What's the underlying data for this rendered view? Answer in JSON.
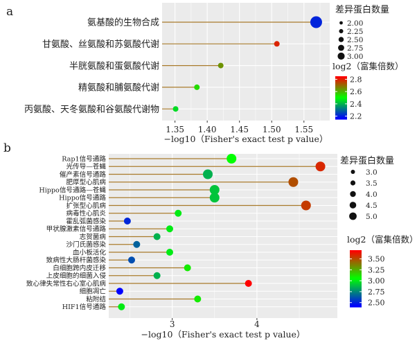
{
  "chart_data": [
    {
      "panel": "a",
      "type": "lollipop",
      "xlabel": "−log10（Fisher's exact test p value）",
      "xlim": [
        1.33,
        1.59
      ],
      "xticks": [
        "1.35",
        "1.40",
        "1.45",
        "1.50",
        "1.55"
      ],
      "xtick_values": [
        1.35,
        1.4,
        1.45,
        1.5,
        1.55
      ],
      "categories": [
        "氨基酸的生物合成",
        "甘氨酸、丝氨酸和苏氨酸代谢",
        "半胱氨酸和蛋氨酸代谢",
        "精氨酸和脯氨酸代谢",
        "丙氨酸、天冬氨酸和谷氨酸代谢物"
      ],
      "values": [
        1.569,
        1.508,
        1.421,
        1.384,
        1.351
      ],
      "counts": [
        3,
        2,
        2,
        2,
        2
      ],
      "log2_enrichment": [
        2.2,
        2.8,
        2.65,
        2.55,
        2.45
      ],
      "legend_size": {
        "title": "差异蛋白数量",
        "labels": [
          "2.00",
          "2.25",
          "2.50",
          "2.75",
          "3.00"
        ],
        "values": [
          2.0,
          2.25,
          2.5,
          2.75,
          3.0
        ]
      },
      "legend_color": {
        "title": "log2（富集倍数）",
        "labels": [
          "2.8",
          "2.6",
          "2.4",
          "2.2"
        ],
        "values": [
          2.8,
          2.6,
          2.4,
          2.2
        ],
        "range": [
          2.15,
          2.85
        ]
      },
      "grid": true,
      "legend_placement": "right"
    },
    {
      "panel": "b",
      "type": "lollipop",
      "xlabel": "−log10（Fisher's exact test p value）",
      "xlim": [
        2.25,
        4.95
      ],
      "xticks": [
        "3",
        "4"
      ],
      "xtick_values": [
        3,
        4
      ],
      "categories": [
        "Rap1信号通路",
        "光传导—苍蝇",
        "催产素信号通路",
        "肥厚型心肌病",
        "Hippo信号通路—苍蝇",
        "Hippo信号通路",
        "扩张型心肌病",
        "病毒性心肌炎",
        "霍乱弧菌感染",
        "甲状腺激素信号通路",
        "志贺菌病",
        "沙门氏菌感染",
        "血小板活化",
        "致病性大肠杆菌感染",
        "白细胞跨内皮迁移",
        "上皮细胞的细菌入侵",
        "致心律失常性右心室心肌病",
        "细胞凋亡",
        "粘附结",
        "HIF1信号通路"
      ],
      "values": [
        3.7,
        4.75,
        3.42,
        4.43,
        3.5,
        3.5,
        4.58,
        3.07,
        2.47,
        2.97,
        2.82,
        2.58,
        2.97,
        2.52,
        3.18,
        2.82,
        3.9,
        2.38,
        3.3,
        2.4
      ],
      "counts": [
        4,
        4,
        4,
        4,
        4,
        4,
        4,
        3,
        3,
        3,
        3,
        3,
        3,
        3,
        3,
        3,
        3,
        3,
        3,
        3
      ],
      "log2_enrichment": [
        3.05,
        3.6,
        2.85,
        3.5,
        2.9,
        2.9,
        3.55,
        3.0,
        2.5,
        3.0,
        2.85,
        2.65,
        3.0,
        2.6,
        3.1,
        2.85,
        3.7,
        2.4,
        3.1,
        3.0
      ],
      "legend_size": {
        "title": "差异蛋白数量",
        "labels": [
          "3.0",
          "3.5",
          "4.0",
          "4.5",
          "5.0"
        ],
        "values": [
          3.0,
          3.5,
          4.0,
          4.5,
          5.0
        ]
      },
      "legend_color": {
        "title": "log2（富集倍数）",
        "labels": [
          "3.50",
          "3.25",
          "3.00",
          "2.75",
          "2.50"
        ],
        "values": [
          3.5,
          3.25,
          3.0,
          2.75,
          2.5
        ],
        "range": [
          2.4,
          3.7
        ]
      },
      "grid": true,
      "legend_placement": "right"
    }
  ],
  "colors": {
    "panel_bg": "#ebebeb",
    "grid": "#ffffff",
    "stem": "#a87a2a",
    "scale": [
      "#0000ff",
      "#00ff00",
      "#ff0000"
    ]
  }
}
